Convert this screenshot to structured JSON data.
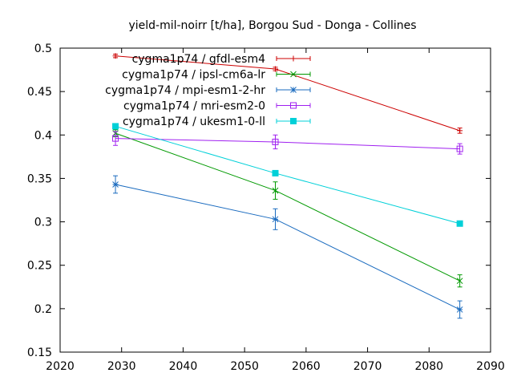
{
  "chart_data": {
    "type": "line",
    "title": "yield-mil-noirr [t/ha], Borgou Sud - Donga - Collines",
    "xlabel": "",
    "ylabel": "",
    "xlim": [
      2020,
      2090
    ],
    "ylim": [
      0.15,
      0.5
    ],
    "xticks": [
      2020,
      2030,
      2040,
      2050,
      2060,
      2070,
      2080,
      2090
    ],
    "yticks": [
      0.15,
      0.2,
      0.25,
      0.3,
      0.35,
      0.4,
      0.45,
      0.5
    ],
    "xtick_labels": [
      "2020",
      "2030",
      "2040",
      "2050",
      "2060",
      "2070",
      "2080",
      "2090"
    ],
    "ytick_labels": [
      "0.15",
      "0.2",
      "0.25",
      "0.3",
      "0.35",
      "0.4",
      "0.45",
      "0.5"
    ],
    "grid": false,
    "legend_position": "top-right",
    "series": [
      {
        "name": "cygma1p74 / gfdl-esm4",
        "color": "#cc0000",
        "marker": "plus",
        "points": [
          {
            "x": 2029,
            "y": 0.491,
            "err": 0.002
          },
          {
            "x": 2055,
            "y": 0.476,
            "err": 0.002
          },
          {
            "x": 2085,
            "y": 0.405,
            "err": 0.003
          }
        ]
      },
      {
        "name": "cygma1p74 / ipsl-cm6a-lr",
        "color": "#009900",
        "marker": "cross",
        "points": [
          {
            "x": 2029,
            "y": 0.402,
            "err": 0.004
          },
          {
            "x": 2055,
            "y": 0.336,
            "err": 0.01
          },
          {
            "x": 2085,
            "y": 0.232,
            "err": 0.007
          }
        ]
      },
      {
        "name": "cygma1p74 / mpi-esm1-2-hr",
        "color": "#1a6bbf",
        "marker": "star",
        "points": [
          {
            "x": 2029,
            "y": 0.343,
            "err": 0.01
          },
          {
            "x": 2055,
            "y": 0.303,
            "err": 0.012
          },
          {
            "x": 2085,
            "y": 0.199,
            "err": 0.01
          }
        ]
      },
      {
        "name": "cygma1p74 / mri-esm2-0",
        "color": "#a020f0",
        "marker": "square-open",
        "points": [
          {
            "x": 2029,
            "y": 0.396,
            "err": 0.008
          },
          {
            "x": 2055,
            "y": 0.392,
            "err": 0.008
          },
          {
            "x": 2085,
            "y": 0.384,
            "err": 0.006
          }
        ]
      },
      {
        "name": "cygma1p74 / ukesm1-0-ll",
        "color": "#00d0d8",
        "marker": "square-filled",
        "points": [
          {
            "x": 2029,
            "y": 0.41,
            "err": 0.003
          },
          {
            "x": 2055,
            "y": 0.356,
            "err": 0.003
          },
          {
            "x": 2085,
            "y": 0.298,
            "err": 0.002
          }
        ]
      }
    ]
  }
}
